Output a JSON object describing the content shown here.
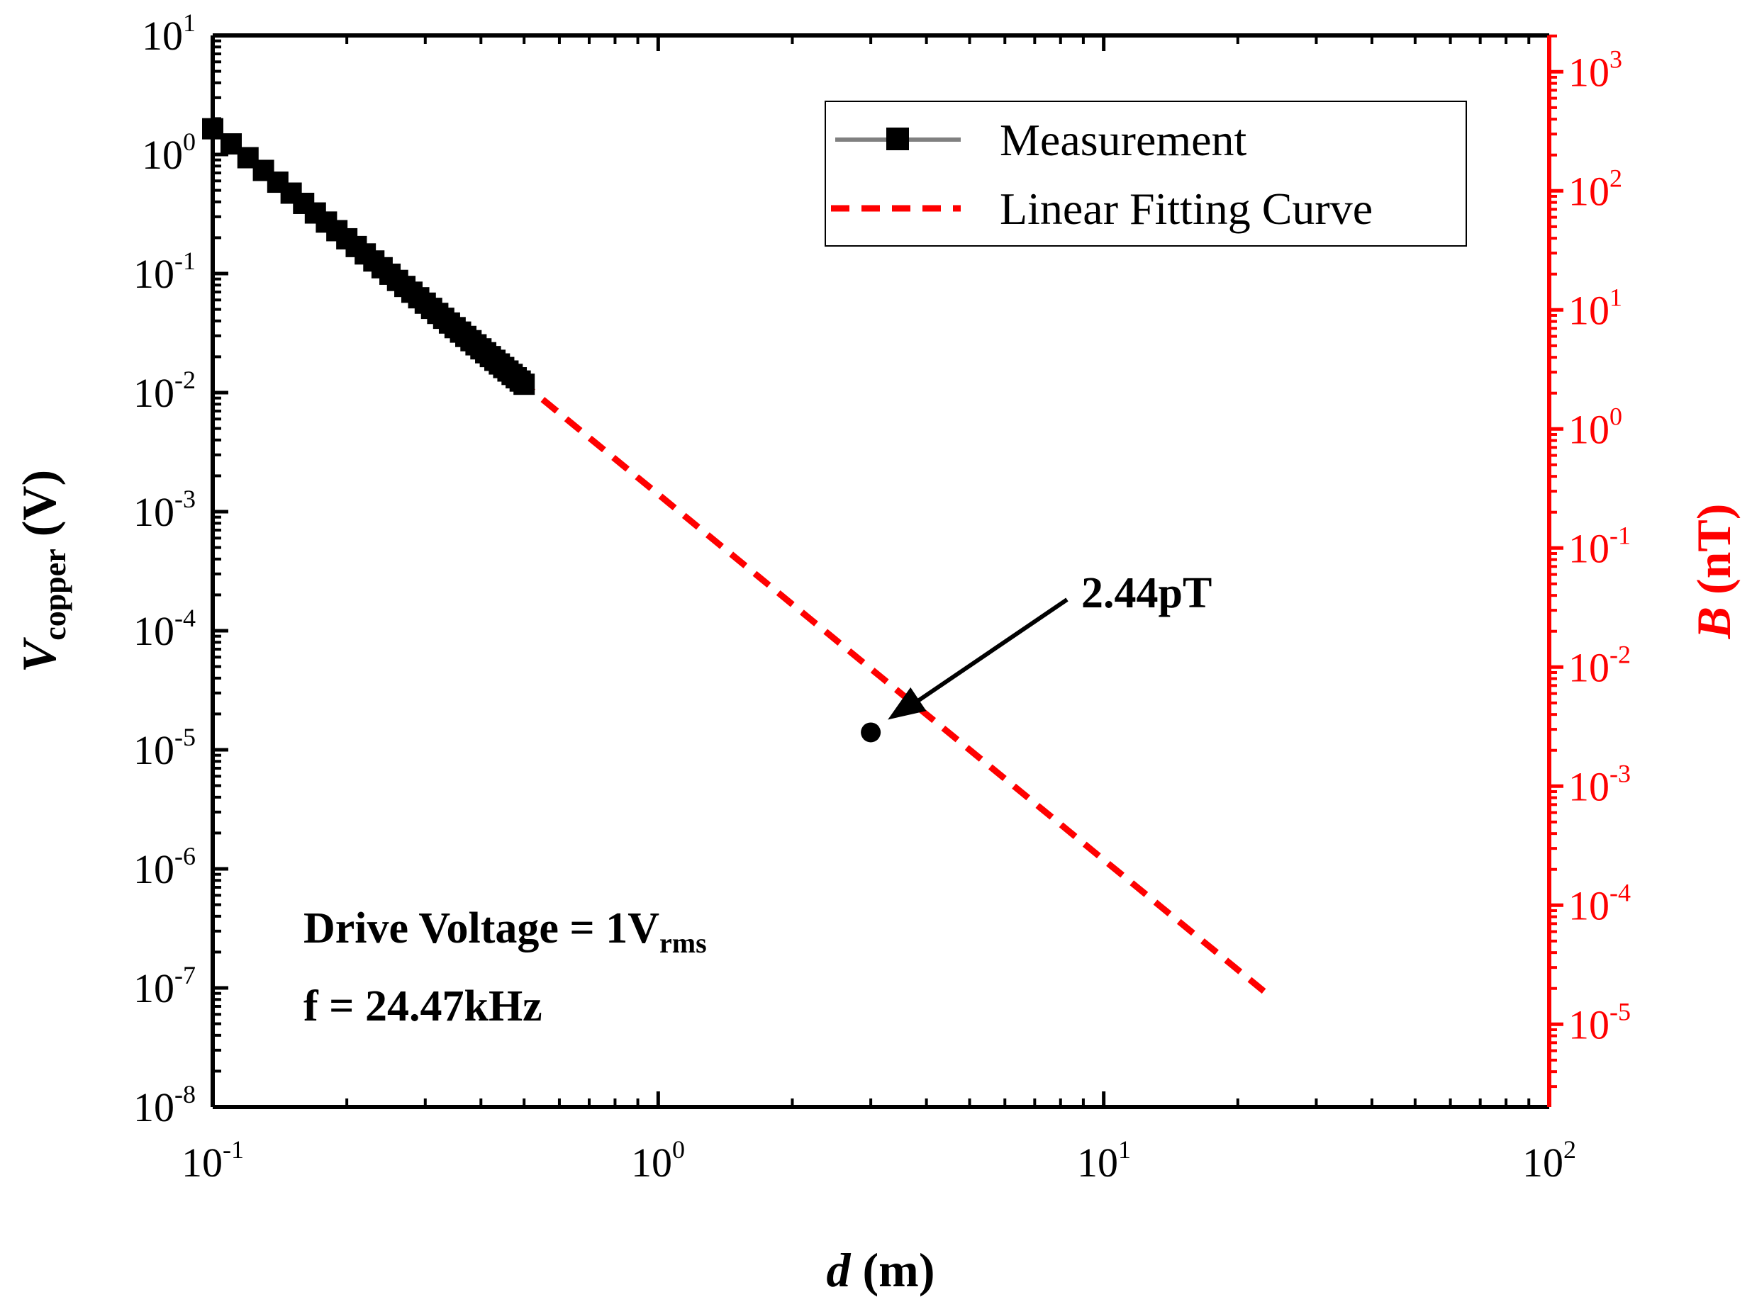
{
  "chart_data": {
    "type": "line",
    "x_axis": {
      "label_var": "d",
      "label_unit": " (m)",
      "scale": "log",
      "range": [
        0.1,
        100
      ],
      "ticks": [
        {
          "base": "10",
          "exp": "-1"
        },
        {
          "base": "10",
          "exp": "0"
        },
        {
          "base": "10",
          "exp": "1"
        },
        {
          "base": "10",
          "exp": "2"
        }
      ]
    },
    "y_axis_left": {
      "label_var": "V",
      "label_sub": "copper",
      "label_unit": " (V)",
      "scale": "log",
      "range": [
        1e-08,
        10
      ],
      "ticks": [
        {
          "base": "10",
          "exp": "1"
        },
        {
          "base": "10",
          "exp": "0"
        },
        {
          "base": "10",
          "exp": "-1"
        },
        {
          "base": "10",
          "exp": "-2"
        },
        {
          "base": "10",
          "exp": "-3"
        },
        {
          "base": "10",
          "exp": "-4"
        },
        {
          "base": "10",
          "exp": "-5"
        },
        {
          "base": "10",
          "exp": "-6"
        },
        {
          "base": "10",
          "exp": "-7"
        },
        {
          "base": "10",
          "exp": "-8"
        }
      ]
    },
    "y_axis_right": {
      "label_var": "B",
      "label_unit": " (nT)",
      "scale": "log",
      "color": "#ff0000",
      "range": [
        2.02e-06,
        2020.0
      ],
      "ticks": [
        {
          "base": "10",
          "exp": "3",
          "value": 1000
        },
        {
          "base": "10",
          "exp": "2",
          "value": 100
        },
        {
          "base": "10",
          "exp": "1",
          "value": 10
        },
        {
          "base": "10",
          "exp": "0",
          "value": 1
        },
        {
          "base": "10",
          "exp": "-1",
          "value": 0.1
        },
        {
          "base": "10",
          "exp": "-2",
          "value": 0.01
        },
        {
          "base": "10",
          "exp": "-3",
          "value": 0.001
        },
        {
          "base": "10",
          "exp": "-4",
          "value": 0.0001
        },
        {
          "base": "10",
          "exp": "-5",
          "value": 1e-05
        }
      ]
    },
    "series": [
      {
        "name": "Measurement",
        "color": "#000000",
        "line_color": "#808080",
        "marker": "square",
        "x": [
          0.1,
          0.11,
          0.12,
          0.13,
          0.14,
          0.15,
          0.16,
          0.17,
          0.18,
          0.19,
          0.2,
          0.21,
          0.22,
          0.23,
          0.24,
          0.25,
          0.26,
          0.27,
          0.28,
          0.29,
          0.3,
          0.31,
          0.32,
          0.33,
          0.34,
          0.35,
          0.36,
          0.37,
          0.38,
          0.39,
          0.4,
          0.41,
          0.42,
          0.43,
          0.44,
          0.45,
          0.46,
          0.47,
          0.48,
          0.49,
          0.5
        ],
        "y_model": {
          "a": 0.0014,
          "k": 3.07
        }
      },
      {
        "name": "Linear Fitting Curve",
        "color": "#ff0000",
        "style": "dashed",
        "x_range": [
          0.1,
          23.5
        ],
        "y_model": {
          "a": 0.0014,
          "k": 3.07
        }
      }
    ],
    "annotation": {
      "text": "2.44pT",
      "point_x": 3.0,
      "point_y": 1.4e-05
    },
    "notes": {
      "line1_main": "Drive Voltage = 1V",
      "line1_sub": "rms",
      "line2": "f = 24.47kHz"
    }
  }
}
